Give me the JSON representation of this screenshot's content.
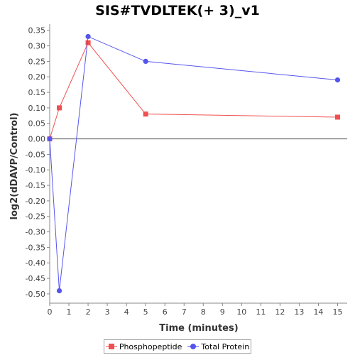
{
  "chart_data": {
    "type": "line",
    "title": "SIS#TVDLTEK(+ 3)_v1",
    "xlabel": "Time (minutes)",
    "ylabel": "log2(dDAVP/Control)",
    "xlim": [
      0,
      15.5
    ],
    "ylim": [
      -0.53,
      0.37
    ],
    "xticks": [
      0,
      1,
      2,
      3,
      4,
      5,
      6,
      7,
      8,
      9,
      10,
      11,
      12,
      13,
      14,
      15
    ],
    "yticks": [
      "0.35",
      "0.30",
      "0.25",
      "0.20",
      "0.15",
      "0.10",
      "0.05",
      "0.00",
      "-0.05",
      "-0.10",
      "-0.15",
      "-0.20",
      "-0.25",
      "-0.30",
      "-0.35",
      "-0.40",
      "-0.45",
      "-0.50"
    ],
    "grid": false,
    "legend_position": "bottom",
    "series": [
      {
        "name": "Phosphopeptide",
        "color": "#f05050",
        "marker": "square",
        "x": [
          0,
          0.5,
          2,
          5,
          15
        ],
        "y": [
          0.0,
          0.1,
          0.31,
          0.08,
          0.07
        ]
      },
      {
        "name": "Total Protein",
        "color": "#5555ee",
        "marker": "circle",
        "x": [
          0,
          0.5,
          2,
          5,
          15
        ],
        "y": [
          0.0,
          -0.49,
          0.33,
          0.25,
          0.19
        ]
      }
    ]
  }
}
